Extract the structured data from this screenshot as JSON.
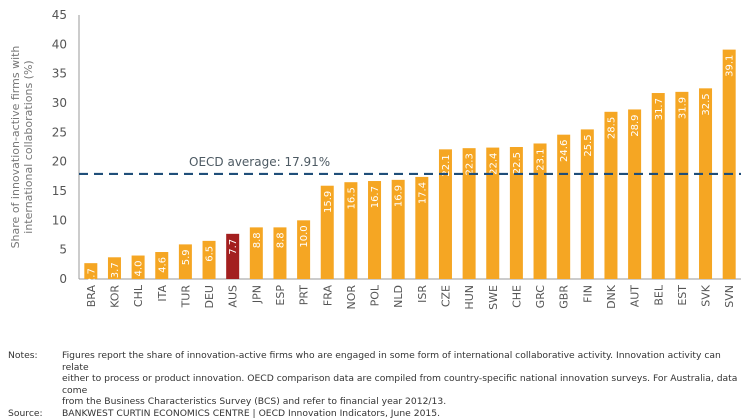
{
  "chart_data": {
    "type": "bar",
    "ylabel": "Share of innovation-active firms with international collaborations (%)",
    "ylabel_lines": [
      "Share of innovation-active firms with",
      "international collaborations (%)"
    ],
    "ylim": [
      0,
      45
    ],
    "yticks": [
      0,
      5,
      10,
      15,
      20,
      25,
      30,
      35,
      40,
      45
    ],
    "grid": false,
    "categories": [
      "BRA",
      "KOR",
      "CHL",
      "ITA",
      "TUR",
      "DEU",
      "AUS",
      "JPN",
      "ESP",
      "PRT",
      "FRA",
      "NOR",
      "POL",
      "NLD",
      "ISR",
      "CZE",
      "HUN",
      "SWE",
      "CHE",
      "GRC",
      "GBR",
      "FIN",
      "DNK",
      "AUT",
      "BEL",
      "EST",
      "SVK",
      "SVN"
    ],
    "values": [
      2.7,
      3.7,
      4.0,
      4.6,
      5.9,
      6.5,
      7.7,
      8.8,
      8.8,
      10.0,
      15.9,
      16.5,
      16.7,
      16.9,
      17.4,
      22.1,
      22.3,
      22.4,
      22.5,
      23.1,
      24.6,
      25.5,
      28.5,
      28.9,
      31.7,
      31.9,
      32.5,
      39.1
    ],
    "value_labels": [
      "2.7",
      "3.7",
      "4.0",
      "4.6",
      "5.9",
      "6.5",
      "7.7",
      "8.8",
      "8.8",
      "10.0",
      "15.9",
      "16.5",
      "16.7",
      "16.9",
      "17.4",
      "22.1",
      "22.3",
      "22.4",
      "22.5",
      "23.1",
      "24.6",
      "25.5",
      "28.5",
      "28.9",
      "31.7",
      "31.9",
      "32.5",
      "39.1"
    ],
    "highlight_category": "AUS",
    "colors": {
      "bar": "#f5a623",
      "highlight": "#a31f1f",
      "average_line": "#1f4e79"
    },
    "average": {
      "value": 17.91,
      "label": "OECD average: 17.91%"
    }
  },
  "footer": {
    "notes_label": "Notes:",
    "notes_lines": [
      "Figures report the share of innovation-active firms who are engaged in some form of international collaborative activity. Innovation activity can relate",
      "either to process or product innovation. OECD comparison data are compiled from country-specific national innovation surveys. For Australia, data come",
      "from the Business Characteristics Survey (BCS) and refer to financial year 2012/13."
    ],
    "source_label": "Source:",
    "source_text": "BANKWEST CURTIN ECONOMICS CENTRE | OECD Innovation Indicators, June 2015."
  }
}
